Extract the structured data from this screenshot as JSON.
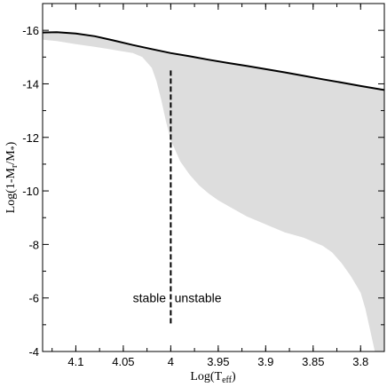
{
  "chart_data": {
    "type": "area",
    "title": "",
    "xlabel": {
      "main": "Log(T",
      "sub": "eff",
      "close": ")"
    },
    "ylabel": {
      "prefix": "Log(1-M",
      "sub1": "r",
      "mid": "/M",
      "sub2": "*",
      "close": ")"
    },
    "xlim": [
      4.135,
      3.775
    ],
    "ylim": [
      -4,
      -17
    ],
    "x_ticks": [
      4.1,
      4.05,
      4.0,
      3.95,
      3.9,
      3.85,
      3.8
    ],
    "x_tick_labels": [
      "4.1",
      "4.05",
      "4",
      "3.95",
      "3.9",
      "3.85",
      "3.8"
    ],
    "y_ticks": [
      -16,
      -14,
      -12,
      -10,
      -8,
      -6,
      -4
    ],
    "y_tick_labels": [
      "-16",
      "-14",
      "-12",
      "-10",
      "-8",
      "-6",
      "-4"
    ],
    "grid": false,
    "series": [
      {
        "kind": "line",
        "color": "#000000",
        "x": [
          4.135,
          4.12,
          4.1,
          4.08,
          4.06,
          4.04,
          4.02,
          4.0,
          3.98,
          3.96,
          3.94,
          3.92,
          3.9,
          3.88,
          3.86,
          3.84,
          3.82,
          3.8,
          3.78,
          3.775
        ],
        "y": [
          -15.92,
          -15.93,
          -15.88,
          -15.78,
          -15.62,
          -15.45,
          -15.3,
          -15.15,
          -15.03,
          -14.9,
          -14.78,
          -14.67,
          -14.55,
          -14.43,
          -14.3,
          -14.17,
          -14.05,
          -13.92,
          -13.8,
          -13.77
        ]
      },
      {
        "kind": "shaded_region",
        "color": "#dddddd",
        "lower_x": [
          4.135,
          4.12,
          4.1,
          4.08,
          4.06,
          4.04,
          4.03,
          4.02,
          4.015,
          4.01,
          4.005,
          4.0,
          3.99,
          3.98,
          3.97,
          3.96,
          3.95,
          3.94,
          3.93,
          3.92,
          3.91,
          3.9,
          3.89,
          3.88,
          3.87,
          3.86,
          3.85,
          3.84,
          3.83,
          3.82,
          3.81,
          3.8,
          3.795,
          3.79,
          3.785
        ],
        "lower_y": [
          -15.65,
          -15.6,
          -15.48,
          -15.38,
          -15.27,
          -15.15,
          -15.0,
          -14.6,
          -14.1,
          -13.4,
          -12.6,
          -11.9,
          -11.1,
          -10.6,
          -10.2,
          -9.9,
          -9.65,
          -9.45,
          -9.25,
          -9.05,
          -8.9,
          -8.75,
          -8.6,
          -8.45,
          -8.35,
          -8.25,
          -8.1,
          -7.95,
          -7.7,
          -7.3,
          -6.8,
          -6.2,
          -5.6,
          -4.8,
          -4.0
        ]
      }
    ],
    "annotations": [
      {
        "text": "stable",
        "x": 4.005,
        "y": -6.0,
        "anchor": "end"
      },
      {
        "text": "unstable",
        "x": 3.996,
        "y": -6.0,
        "anchor": "start"
      }
    ],
    "boundary_line": {
      "x": 4.0,
      "y_start": -14.5,
      "y_end": -5.0,
      "style": "dashed"
    }
  }
}
